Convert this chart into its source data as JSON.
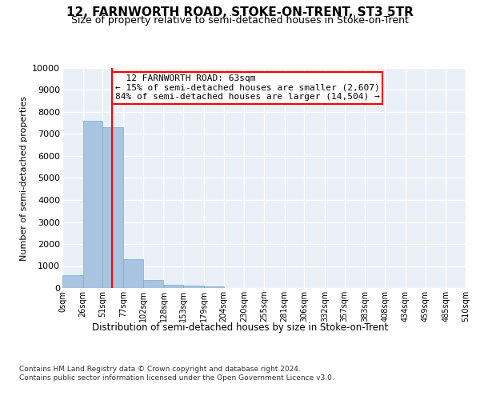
{
  "title": "12, FARNWORTH ROAD, STOKE-ON-TRENT, ST3 5TR",
  "subtitle": "Size of property relative to semi-detached houses in Stoke-on-Trent",
  "xlabel": "Distribution of semi-detached houses by size in Stoke-on-Trent",
  "ylabel": "Number of semi-detached properties",
  "bin_edges": [
    0,
    26,
    51,
    77,
    102,
    128,
    153,
    179,
    204,
    230,
    255,
    281,
    306,
    332,
    357,
    383,
    408,
    434,
    459,
    485,
    510
  ],
  "bar_heights": [
    600,
    7600,
    7300,
    1300,
    350,
    150,
    100,
    60,
    0,
    0,
    0,
    0,
    0,
    0,
    0,
    0,
    0,
    0,
    0,
    0
  ],
  "bar_color": "#a8c4e0",
  "bar_edge_color": "#7aaac8",
  "property_size": 63,
  "vline_color": "red",
  "annotation_text": "  12 FARNWORTH ROAD: 63sqm\n← 15% of semi-detached houses are smaller (2,607)\n84% of semi-detached houses are larger (14,504) →",
  "annotation_box_color": "white",
  "annotation_box_edge": "red",
  "ylim": [
    0,
    10000
  ],
  "yticks": [
    0,
    1000,
    2000,
    3000,
    4000,
    5000,
    6000,
    7000,
    8000,
    9000,
    10000
  ],
  "ytick_labels": [
    "0",
    "1000",
    "2000",
    "3000",
    "4000",
    "5000",
    "6000",
    "7000",
    "8000",
    "9000",
    "10000"
  ],
  "tick_labels": [
    "0sqm",
    "26sqm",
    "51sqm",
    "77sqm",
    "102sqm",
    "128sqm",
    "153sqm",
    "179sqm",
    "204sqm",
    "230sqm",
    "255sqm",
    "281sqm",
    "306sqm",
    "332sqm",
    "357sqm",
    "383sqm",
    "408sqm",
    "434sqm",
    "459sqm",
    "485sqm",
    "510sqm"
  ],
  "footer_text": "Contains HM Land Registry data © Crown copyright and database right 2024.\nContains public sector information licensed under the Open Government Licence v3.0.",
  "background_color": "#eaf0f8",
  "grid_color": "white",
  "title_fontsize": 11,
  "subtitle_fontsize": 9,
  "annotation_fontsize": 8
}
